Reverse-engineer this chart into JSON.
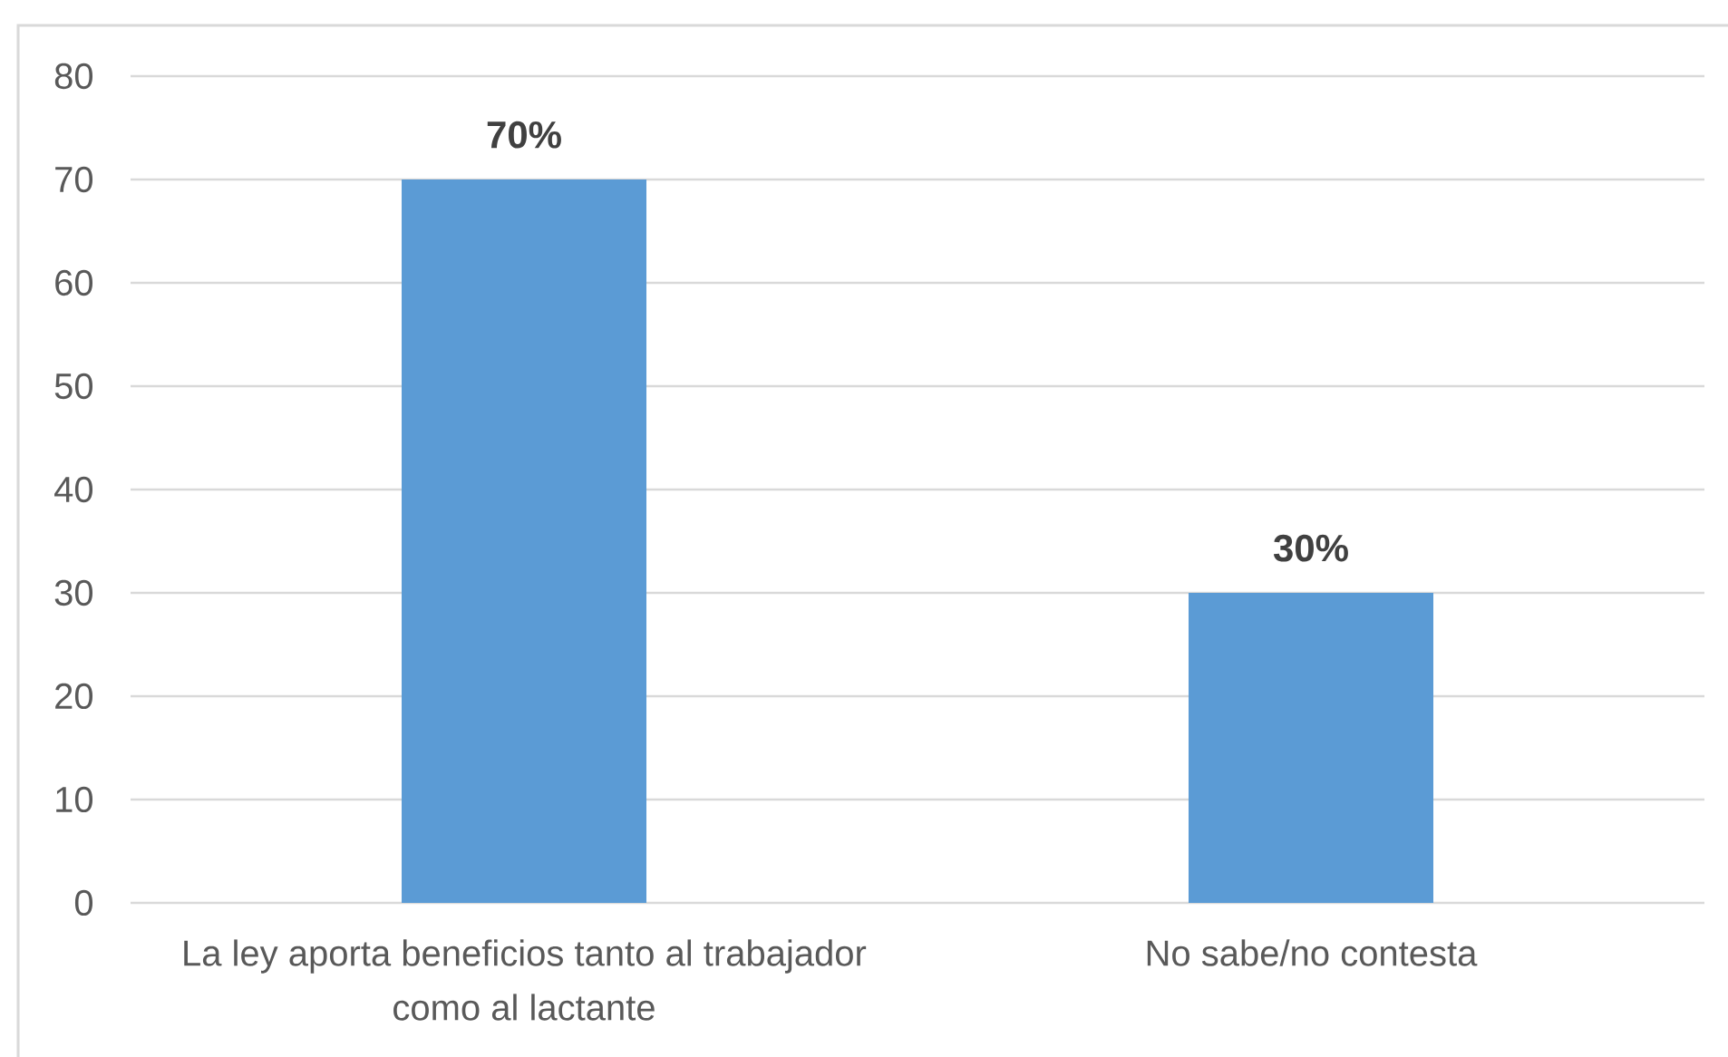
{
  "chart_data": {
    "type": "bar",
    "categories": [
      "La ley aporta beneficios tanto al trabajador como al lactante",
      "No sabe/no contesta"
    ],
    "values": [
      70,
      30
    ],
    "color": "#5b9bd5",
    "value_labels": [
      "70%",
      "30%"
    ],
    "ylim": [
      0,
      80
    ],
    "yticks": [
      0,
      10,
      20,
      30,
      40,
      50,
      60,
      70,
      80
    ],
    "grid": "y"
  }
}
